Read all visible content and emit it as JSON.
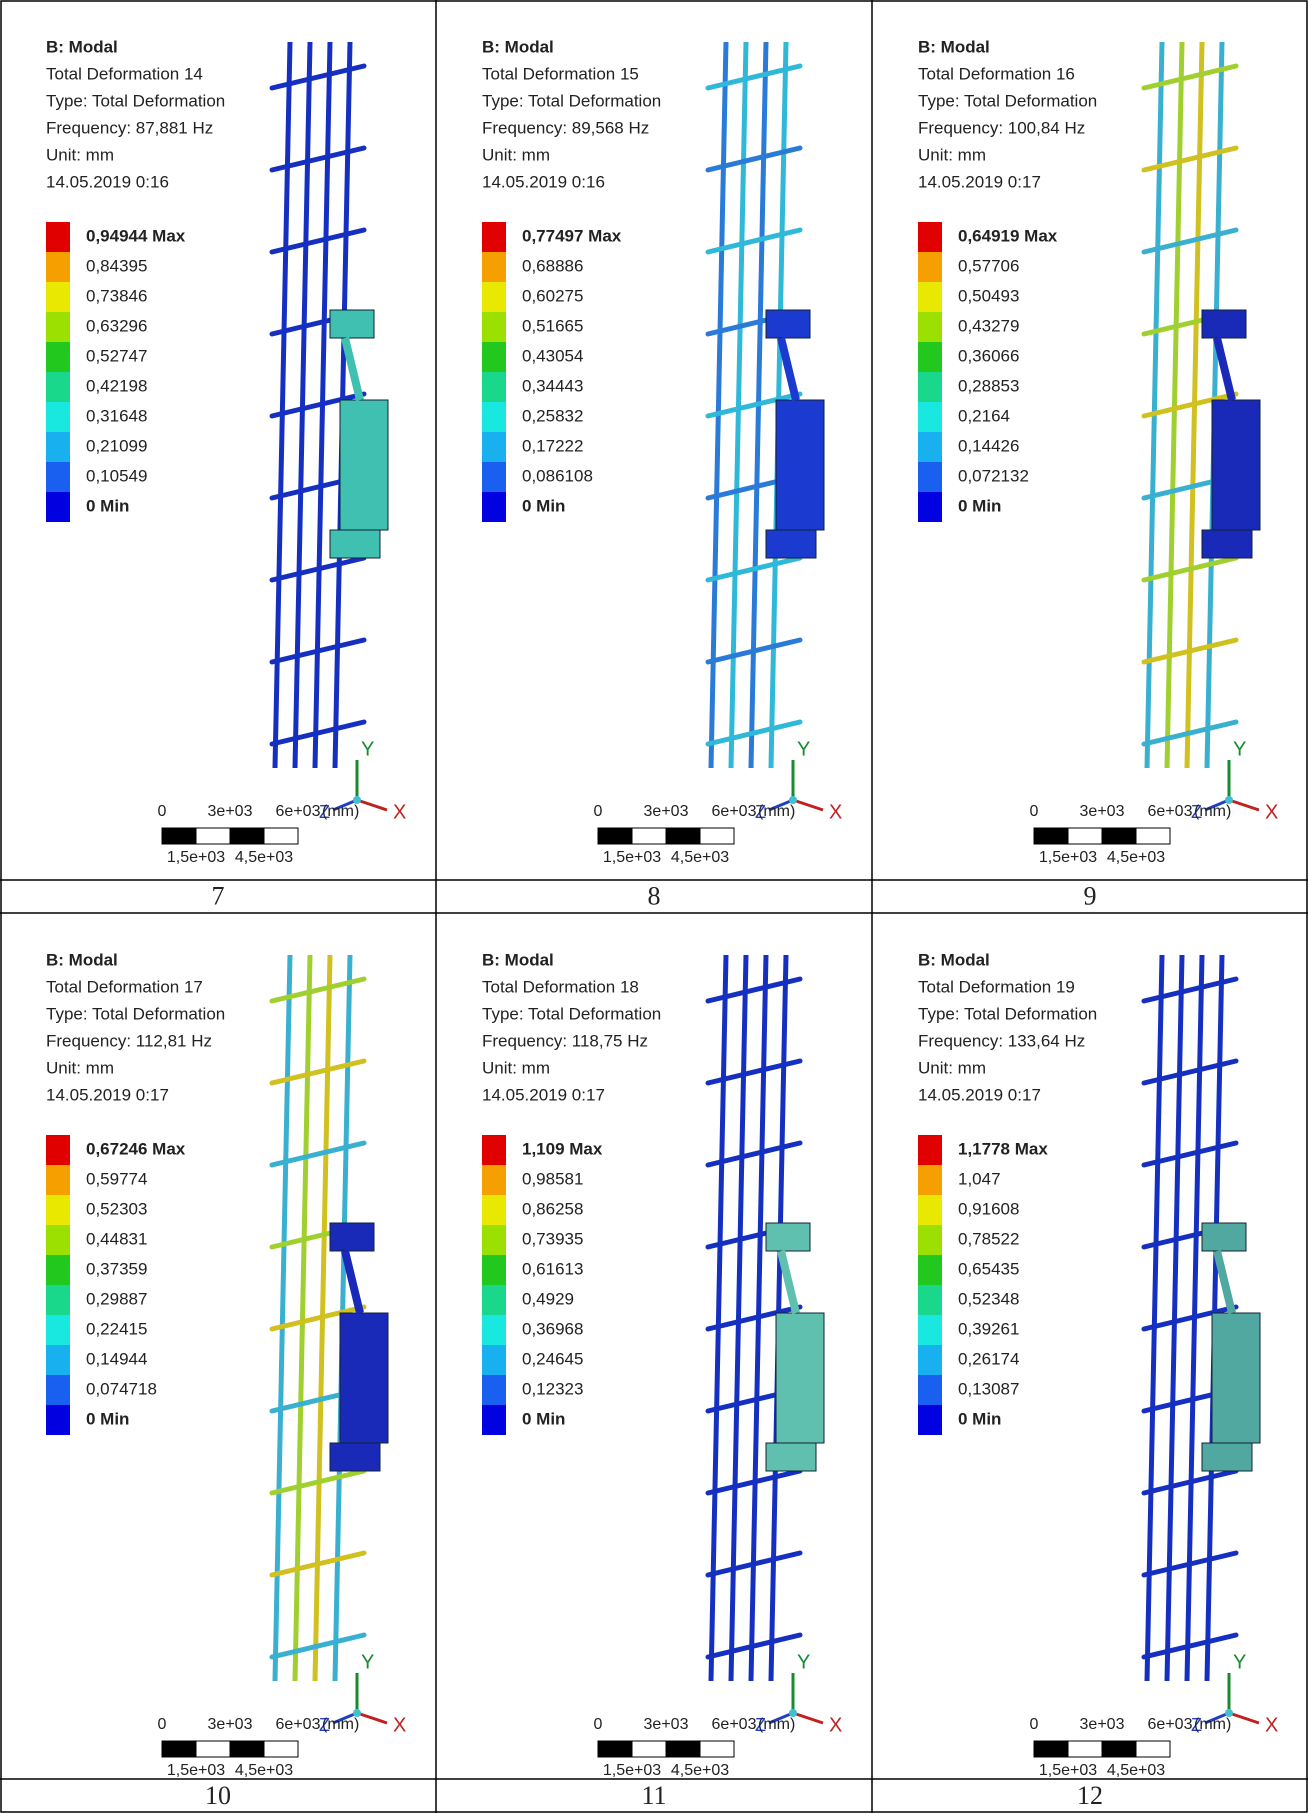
{
  "panels": [
    {
      "title": "B: Modal",
      "name": "Total Deformation 14",
      "type": "Type: Total Deformation",
      "frequency": "Frequency: 87,881 Hz",
      "unit": "Unit: mm",
      "date": "14.05.2019 0:16",
      "legend": [
        "0,94944 Max",
        "0,84395",
        "0,73846",
        "0,63296",
        "0,52747",
        "0,42198",
        "0,31648",
        "0,21099",
        "0,10549",
        "0 Min"
      ],
      "scale": [
        "0",
        "3e+03",
        "6e+03",
        "(mm)",
        "1,5e+03",
        "4,5e+03"
      ],
      "axes": [
        "Y",
        "Z",
        "X"
      ],
      "caption": "7"
    },
    {
      "title": "B: Modal",
      "name": "Total Deformation 15",
      "type": "Type: Total Deformation",
      "frequency": "Frequency: 89,568 Hz",
      "unit": "Unit: mm",
      "date": "14.05.2019 0:16",
      "legend": [
        "0,77497 Max",
        "0,68886",
        "0,60275",
        "0,51665",
        "0,43054",
        "0,34443",
        "0,25832",
        "0,17222",
        "0,086108",
        "0 Min"
      ],
      "scale": [
        "0",
        "3e+03",
        "6e+03",
        "(mm)",
        "1,5e+03",
        "4,5e+03"
      ],
      "axes": [
        "Y",
        "Z",
        "X"
      ],
      "caption": "8"
    },
    {
      "title": "B: Modal",
      "name": "Total Deformation 16",
      "type": "Type: Total Deformation",
      "frequency": "Frequency: 100,84 Hz",
      "unit": "Unit: mm",
      "date": "14.05.2019 0:17",
      "legend": [
        "0,64919 Max",
        "0,57706",
        "0,50493",
        "0,43279",
        "0,36066",
        "0,28853",
        "0,2164",
        "0,14426",
        "0,072132",
        "0 Min"
      ],
      "scale": [
        "0",
        "3e+03",
        "6e+03",
        "(mm)",
        "1,5e+03",
        "4,5e+03"
      ],
      "axes": [
        "Y",
        "Z",
        "X"
      ],
      "caption": "9"
    },
    {
      "title": "B: Modal",
      "name": "Total Deformation 17",
      "type": "Type: Total Deformation",
      "frequency": "Frequency: 112,81 Hz",
      "unit": "Unit: mm",
      "date": "14.05.2019 0:17",
      "legend": [
        "0,67246 Max",
        "0,59774",
        "0,52303",
        "0,44831",
        "0,37359",
        "0,29887",
        "0,22415",
        "0,14944",
        "0,074718",
        "0 Min"
      ],
      "scale": [
        "0",
        "3e+03",
        "6e+03",
        "(mm)",
        "1,5e+03",
        "4,5e+03"
      ],
      "axes": [
        "Y",
        "Z",
        "X"
      ],
      "caption": "10"
    },
    {
      "title": "B: Modal",
      "name": "Total Deformation 18",
      "type": "Type: Total Deformation",
      "frequency": "Frequency: 118,75 Hz",
      "unit": "Unit: mm",
      "date": "14.05.2019 0:17",
      "legend": [
        "1,109 Max",
        "0,98581",
        "0,86258",
        "0,73935",
        "0,61613",
        "0,4929",
        "0,36968",
        "0,24645",
        "0,12323",
        "0 Min"
      ],
      "scale": [
        "0",
        "3e+03",
        "6e+03",
        "(mm)",
        "1,5e+03",
        "4,5e+03"
      ],
      "axes": [
        "Y",
        "Z",
        "X"
      ],
      "caption": "11"
    },
    {
      "title": "B: Modal",
      "name": "Total Deformation 19",
      "type": "Type: Total Deformation",
      "frequency": "Frequency: 133,64 Hz",
      "unit": "Unit: mm",
      "date": "14.05.2019 0:17",
      "legend": [
        "1,1778 Max",
        "1,047",
        "0,91608",
        "0,78522",
        "0,65435",
        "0,52348",
        "0,39261",
        "0,26174",
        "0,13087",
        "0 Min"
      ],
      "scale": [
        "0",
        "3e+03",
        "6e+03",
        "(mm)",
        "1,5e+03",
        "4,5e+03"
      ],
      "axes": [
        "Y",
        "Z",
        "X"
      ],
      "caption": "12"
    }
  ]
}
